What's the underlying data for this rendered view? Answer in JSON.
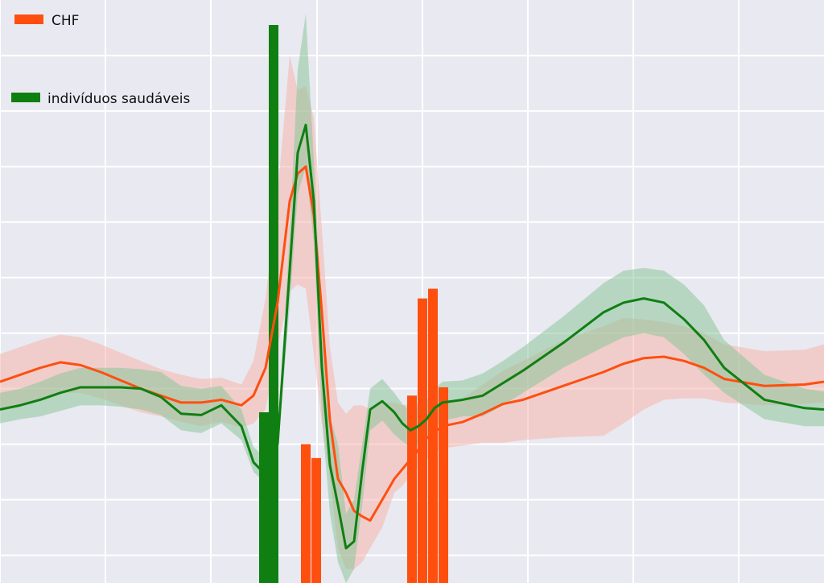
{
  "colors": {
    "background": "#e9e9f1",
    "grid": "#ffffff",
    "chf": "#ff4f0f",
    "healthy": "#0f7f12",
    "chf_band": "#f6b7ab",
    "healthy_band": "#8dc79a"
  },
  "legend": {
    "chf_label": "CHF",
    "healthy_label": "indivíduos saudáveis"
  },
  "chart_data": {
    "type": "line",
    "title": "",
    "xlabel": "",
    "ylabel": "",
    "grid": true,
    "legend_position": "top-left",
    "xlim": [
      0,
      1024
    ],
    "ylim": [
      -1.2,
      3.0
    ],
    "x": [
      0,
      25,
      50,
      75,
      100,
      125,
      150,
      175,
      200,
      225,
      250,
      275,
      300,
      315,
      330,
      345,
      360,
      370,
      380,
      390,
      400,
      410,
      420,
      430,
      440,
      450,
      460,
      475,
      490,
      500,
      510,
      520,
      530,
      540,
      550,
      575,
      600,
      625,
      650,
      700,
      750,
      775,
      800,
      825,
      850,
      875,
      900,
      950,
      1000,
      1024
    ],
    "series": [
      {
        "name": "CHF",
        "values": [
          0.25,
          0.3,
          0.35,
          0.39,
          0.37,
          0.32,
          0.26,
          0.2,
          0.15,
          0.1,
          0.1,
          0.12,
          0.08,
          0.15,
          0.35,
          0.82,
          1.55,
          1.75,
          1.8,
          1.45,
          0.75,
          -0.03,
          -0.45,
          -0.55,
          -0.68,
          -0.72,
          -0.75,
          -0.6,
          -0.45,
          -0.38,
          -0.31,
          -0.24,
          -0.16,
          -0.11,
          -0.07,
          -0.04,
          0.02,
          0.09,
          0.12,
          0.22,
          0.32,
          0.38,
          0.42,
          0.43,
          0.4,
          0.35,
          0.27,
          0.22,
          0.23,
          0.25
        ],
        "band_low": [
          0.05,
          0.08,
          0.13,
          0.17,
          0.17,
          0.13,
          0.08,
          0.03,
          0.0,
          -0.04,
          -0.07,
          -0.04,
          -0.08,
          -0.05,
          0.05,
          0.5,
          0.9,
          0.95,
          0.92,
          0.45,
          -0.05,
          -0.45,
          -0.95,
          -1.1,
          -1.1,
          -1.05,
          -0.95,
          -0.8,
          -0.55,
          -0.5,
          -0.43,
          -0.37,
          -0.31,
          -0.26,
          -0.23,
          -0.21,
          -0.19,
          -0.19,
          -0.17,
          -0.15,
          -0.14,
          -0.05,
          0.05,
          0.12,
          0.13,
          0.13,
          0.1,
          0.08,
          0.09,
          0.1
        ],
        "band_high": [
          0.45,
          0.5,
          0.55,
          0.59,
          0.57,
          0.52,
          0.46,
          0.4,
          0.34,
          0.3,
          0.27,
          0.28,
          0.23,
          0.4,
          0.85,
          1.6,
          2.6,
          2.35,
          2.38,
          2.15,
          1.35,
          0.5,
          0.1,
          0.02,
          0.08,
          0.08,
          0.05,
          0.1,
          0.1,
          0.08,
          0.09,
          0.09,
          0.05,
          0.08,
          0.1,
          0.13,
          0.23,
          0.33,
          0.4,
          0.55,
          0.65,
          0.71,
          0.7,
          0.68,
          0.65,
          0.6,
          0.52,
          0.47,
          0.48,
          0.52
        ]
      },
      {
        "name": "indivíduos saudáveis",
        "values": [
          0.05,
          0.08,
          0.12,
          0.17,
          0.21,
          0.21,
          0.21,
          0.2,
          0.14,
          0.02,
          0.01,
          0.08,
          -0.07,
          -0.33,
          -0.42,
          -0.2,
          1.05,
          1.9,
          2.1,
          1.55,
          0.35,
          -0.35,
          -0.64,
          -0.95,
          -0.9,
          -0.4,
          0.05,
          0.11,
          0.03,
          -0.05,
          -0.1,
          -0.07,
          -0.02,
          0.06,
          0.1,
          0.12,
          0.15,
          0.24,
          0.33,
          0.53,
          0.75,
          0.82,
          0.85,
          0.82,
          0.7,
          0.55,
          0.35,
          0.12,
          0.06,
          0.05
        ],
        "band_low": [
          -0.05,
          -0.02,
          0.0,
          0.04,
          0.08,
          0.08,
          0.07,
          0.05,
          0.01,
          -0.1,
          -0.12,
          -0.05,
          -0.17,
          -0.4,
          -0.48,
          -0.28,
          0.8,
          1.6,
          1.8,
          1.25,
          0.0,
          -0.7,
          -1.05,
          -1.2,
          -1.1,
          -0.65,
          -0.1,
          -0.03,
          -0.13,
          -0.18,
          -0.22,
          -0.2,
          -0.15,
          -0.08,
          -0.03,
          0.0,
          0.0,
          0.08,
          0.17,
          0.35,
          0.5,
          0.57,
          0.6,
          0.57,
          0.45,
          0.3,
          0.17,
          -0.02,
          -0.07,
          -0.07
        ],
        "band_high": [
          0.17,
          0.2,
          0.25,
          0.31,
          0.35,
          0.35,
          0.35,
          0.34,
          0.32,
          0.22,
          0.2,
          0.22,
          0.05,
          -0.22,
          -0.3,
          -0.1,
          1.3,
          2.5,
          2.9,
          1.85,
          0.7,
          0.0,
          -0.2,
          -0.7,
          -0.6,
          -0.2,
          0.2,
          0.27,
          0.17,
          0.09,
          0.04,
          0.07,
          0.11,
          0.2,
          0.25,
          0.26,
          0.31,
          0.4,
          0.5,
          0.72,
          0.96,
          1.05,
          1.07,
          1.05,
          0.95,
          0.8,
          0.55,
          0.3,
          0.2,
          0.18
        ]
      }
    ],
    "bars": [
      {
        "name": "indivíduos saudáveis",
        "x": 328,
        "top": 0.03
      },
      {
        "name": "indivíduos saudáveis",
        "x": 340,
        "top": 2.82
      },
      {
        "name": "CHF",
        "x": 380,
        "top": -0.2
      },
      {
        "name": "CHF",
        "x": 393,
        "top": -0.3
      },
      {
        "name": "CHF",
        "x": 512,
        "top": 0.15
      },
      {
        "name": "CHF",
        "x": 525,
        "top": 0.85
      },
      {
        "name": "CHF",
        "x": 538,
        "top": 0.92
      },
      {
        "name": "CHF",
        "x": 551,
        "top": 0.21
      }
    ],
    "x_gridlines": [
      0,
      131,
      262,
      394,
      525,
      656,
      787,
      918
    ],
    "y_gridlines": [
      -1.0,
      -0.6,
      -0.2,
      0.2,
      0.6,
      1.0,
      1.4,
      1.8,
      2.2,
      2.6
    ]
  }
}
